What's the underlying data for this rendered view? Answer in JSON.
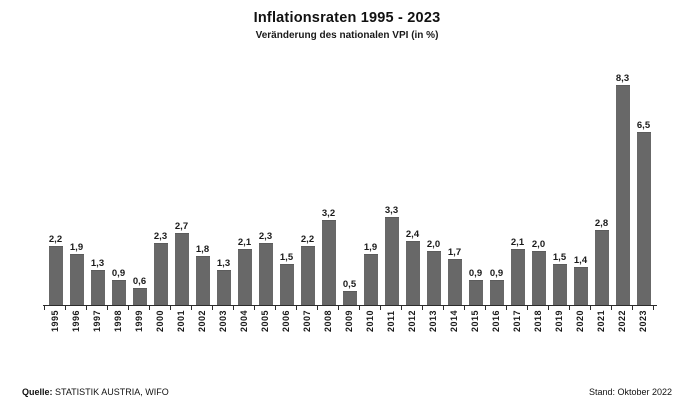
{
  "header": {
    "title": "Inflationsraten 1995 - 2023",
    "subtitle": "Veränderung des nationalen VPI (in %)"
  },
  "footer": {
    "source_label": "Quelle:",
    "source_text": " STATISTIK AUSTRIA, WIFO",
    "status_text": "Stand: Oktober 2022"
  },
  "colors": {
    "bar_fill": "#686868",
    "bar_edge": "#5c5c5c",
    "axis": "#2b2b2b",
    "text": "#1a1a1a"
  },
  "chart_data": {
    "type": "bar",
    "title": "Inflationsraten 1995 - 2023",
    "subtitle": "Veränderung des nationalen VPI (in %)",
    "xlabel": "",
    "ylabel": "",
    "ylim": [
      0,
      9
    ],
    "grid": false,
    "legend": "none",
    "categories": [
      "1995",
      "1996",
      "1997",
      "1998",
      "1999",
      "2000",
      "2001",
      "2002",
      "2003",
      "2004",
      "2005",
      "2006",
      "2007",
      "2008",
      "2009",
      "2010",
      "2011",
      "2012",
      "2013",
      "2014",
      "2015",
      "2016",
      "2017",
      "2018",
      "2019",
      "2020",
      "2021",
      "2022",
      "2023"
    ],
    "values": [
      2.2,
      1.9,
      1.3,
      0.9,
      0.6,
      2.3,
      2.7,
      1.8,
      1.3,
      2.1,
      2.3,
      1.5,
      2.2,
      3.2,
      0.5,
      1.9,
      3.3,
      2.4,
      2.0,
      1.7,
      0.9,
      0.9,
      2.1,
      2.0,
      1.5,
      1.4,
      2.8,
      8.3,
      6.5
    ],
    "value_labels": [
      "2,2",
      "1,9",
      "1,3",
      "0,9",
      "0,6",
      "2,3",
      "2,7",
      "1,8",
      "1,3",
      "2,1",
      "2,3",
      "1,5",
      "2,2",
      "3,2",
      "0,5",
      "1,9",
      "3,3",
      "2,4",
      "2,0",
      "1,7",
      "0,9",
      "0,9",
      "2,1",
      "2,0",
      "1,5",
      "1,4",
      "2,8",
      "8,3",
      "6,5"
    ]
  }
}
